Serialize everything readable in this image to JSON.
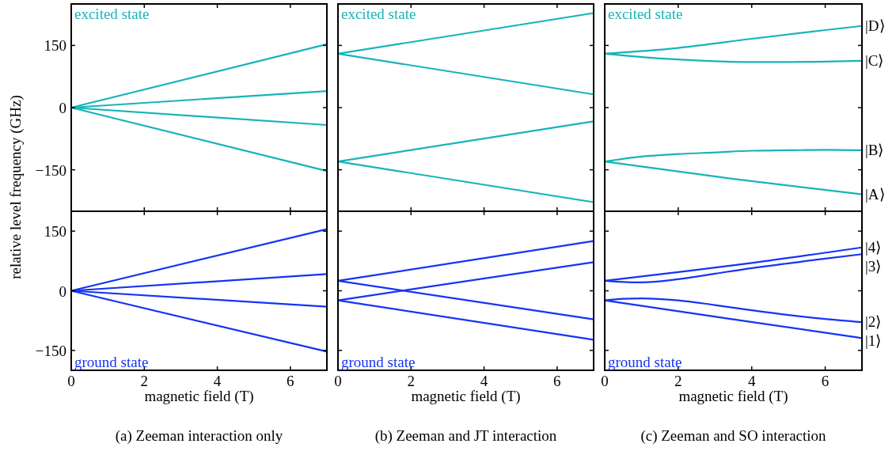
{
  "chart_data": [
    {
      "type": "line",
      "xlim": [
        0,
        7
      ],
      "xticks": [
        0,
        2,
        4,
        6
      ],
      "ylim": [
        -250,
        250
      ],
      "yticks": [
        -150,
        0,
        150
      ],
      "tick_labels": "y",
      "ylabel": "relative level frequency (GHz)",
      "annotations": [
        "excited state"
      ],
      "series": [
        {
          "color": "#17b4b8",
          "x": [
            0,
            7
          ],
          "values": [
            0,
            153
          ]
        },
        {
          "color": "#17b4b8",
          "x": [
            0,
            7
          ],
          "values": [
            0,
            40
          ]
        },
        {
          "color": "#17b4b8",
          "x": [
            0,
            7
          ],
          "values": [
            0,
            -42
          ]
        },
        {
          "color": "#17b4b8",
          "x": [
            0,
            7
          ],
          "values": [
            0,
            -153
          ]
        }
      ]
    },
    {
      "type": "line",
      "xlim": [
        0,
        7
      ],
      "xticks": [
        0,
        2,
        4,
        6
      ],
      "ylim": [
        -250,
        250
      ],
      "yticks": [
        -150,
        0,
        150
      ],
      "tick_labels": false,
      "annotations": [
        "excited state"
      ],
      "series": [
        {
          "color": "#17b4b8",
          "x": [
            0,
            7
          ],
          "values": [
            130,
            228
          ]
        },
        {
          "color": "#17b4b8",
          "x": [
            0,
            7
          ],
          "values": [
            130,
            32
          ]
        },
        {
          "color": "#17b4b8",
          "x": [
            0,
            7
          ],
          "values": [
            -130,
            -33
          ]
        },
        {
          "color": "#17b4b8",
          "x": [
            0,
            7
          ],
          "values": [
            -130,
            -228
          ]
        }
      ]
    },
    {
      "type": "line",
      "xlim": [
        0,
        7
      ],
      "xticks": [
        0,
        2,
        4,
        6
      ],
      "ylim": [
        -250,
        250
      ],
      "yticks": [
        -150,
        0,
        150
      ],
      "tick_labels": false,
      "annotations": [
        "excited state"
      ],
      "series": [
        {
          "name": "|D⟩",
          "color": "#17b4b8",
          "x": [
            0,
            2,
            4,
            6,
            7
          ],
          "values": [
            130,
            144,
            166,
            187,
            197
          ]
        },
        {
          "name": "|C⟩",
          "color": "#17b4b8",
          "x": [
            0,
            1,
            2,
            3,
            4,
            5,
            6,
            7
          ],
          "values": [
            130,
            122,
            116,
            112,
            110,
            110,
            111,
            113
          ]
        },
        {
          "name": "|B⟩",
          "color": "#17b4b8",
          "x": [
            0,
            1,
            2,
            3,
            4,
            5,
            6,
            7
          ],
          "values": [
            -130,
            -118,
            -112,
            -108,
            -104,
            -103,
            -102,
            -103
          ]
        },
        {
          "name": "|A⟩",
          "color": "#17b4b8",
          "x": [
            0,
            3.5,
            7
          ],
          "values": [
            -130,
            -172,
            -209
          ]
        }
      ]
    },
    {
      "type": "line",
      "xlim": [
        0,
        7
      ],
      "xticks": [
        0,
        2,
        4,
        6
      ],
      "ylim": [
        -200,
        200
      ],
      "yticks": [
        -150,
        0,
        150
      ],
      "xlabel": "magnetic field (T)",
      "annotations": [
        "ground state",
        "(a) Zeeman interaction only"
      ],
      "series": [
        {
          "color": "#1534f5",
          "x": [
            0,
            7
          ],
          "values": [
            0,
            155
          ]
        },
        {
          "color": "#1534f5",
          "x": [
            0,
            7
          ],
          "values": [
            0,
            42
          ]
        },
        {
          "color": "#1534f5",
          "x": [
            0,
            7
          ],
          "values": [
            0,
            -40
          ]
        },
        {
          "color": "#1534f5",
          "x": [
            0,
            7
          ],
          "values": [
            0,
            -153
          ]
        }
      ]
    },
    {
      "type": "line",
      "xlim": [
        0,
        7
      ],
      "xticks": [
        0,
        2,
        4,
        6
      ],
      "ylim": [
        -200,
        200
      ],
      "yticks": [
        -150,
        0,
        150
      ],
      "tick_labels": "x",
      "xlabel": "magnetic field (T)",
      "annotations": [
        "ground state",
        "(b) Zeeman and JT interaction"
      ],
      "series": [
        {
          "color": "#1534f5",
          "x": [
            0,
            7
          ],
          "values": [
            25,
            -72
          ]
        },
        {
          "color": "#1534f5",
          "x": [
            0,
            7
          ],
          "values": [
            25,
            125
          ]
        },
        {
          "color": "#1534f5",
          "x": [
            0,
            7
          ],
          "values": [
            -24,
            72
          ]
        },
        {
          "color": "#1534f5",
          "x": [
            0,
            7
          ],
          "values": [
            -24,
            -123
          ]
        }
      ]
    },
    {
      "type": "line",
      "xlim": [
        0,
        7
      ],
      "xticks": [
        0,
        2,
        4,
        6
      ],
      "ylim": [
        -200,
        200
      ],
      "yticks": [
        -150,
        0,
        150
      ],
      "tick_labels": "x",
      "xlabel": "magnetic field (T)",
      "annotations": [
        "ground state",
        "(c) Zeeman and SO interaction"
      ],
      "series": [
        {
          "name": "|4⟩",
          "color": "#1534f5",
          "x": [
            0,
            2,
            4,
            7
          ],
          "values": [
            25,
            47,
            70,
            109
          ]
        },
        {
          "name": "|3⟩",
          "color": "#1534f5",
          "x": [
            0,
            0.5,
            1,
            2,
            3,
            4,
            5,
            6,
            7
          ],
          "values": [
            25,
            22,
            21,
            29,
            43,
            57,
            69,
            81,
            92
          ]
        },
        {
          "name": "|2⟩",
          "color": "#1534f5",
          "x": [
            0,
            0.5,
            1,
            2,
            3,
            4,
            5,
            6,
            7
          ],
          "values": [
            -24,
            -20,
            -19,
            -24,
            -36,
            -49,
            -61,
            -71,
            -79
          ]
        },
        {
          "name": "|1⟩",
          "color": "#1534f5",
          "x": [
            0,
            3.5,
            7
          ],
          "values": [
            -24,
            -72,
            -119
          ]
        }
      ]
    }
  ]
}
